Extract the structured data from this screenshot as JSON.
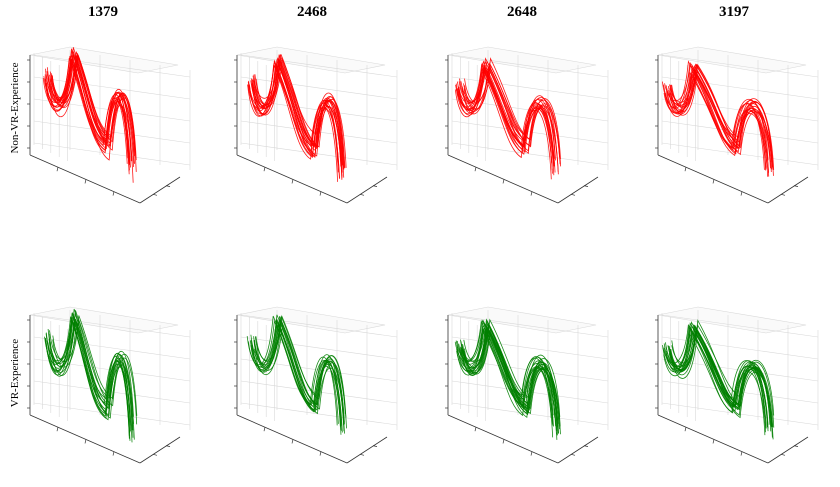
{
  "figure": {
    "columns": [
      "1379",
      "2468",
      "2648",
      "3197"
    ],
    "rows": [
      {
        "label": "Non-VR-Experience",
        "color": "#ff0000"
      },
      {
        "label": "VR-Experience",
        "color": "#008000"
      }
    ]
  },
  "chart_data": [
    {
      "type": "line",
      "subtitle": "1379",
      "group": "Non-VR-Experience",
      "color": "#ff0000",
      "shape": "multi-loop 3D trajectories",
      "grid": true
    },
    {
      "type": "line",
      "subtitle": "2468",
      "group": "Non-VR-Experience",
      "color": "#ff0000",
      "shape": "multi-loop 3D trajectories",
      "grid": true
    },
    {
      "type": "line",
      "subtitle": "2648",
      "group": "Non-VR-Experience",
      "color": "#ff0000",
      "shape": "multi-loop 3D trajectories",
      "grid": true
    },
    {
      "type": "line",
      "subtitle": "3197",
      "group": "Non-VR-Experience",
      "color": "#ff0000",
      "shape": "multi-loop 3D trajectories",
      "grid": true
    },
    {
      "type": "line",
      "subtitle": "1379",
      "group": "VR-Experience",
      "color": "#008000",
      "shape": "multi-loop 3D trajectories",
      "grid": true
    },
    {
      "type": "line",
      "subtitle": "2468",
      "group": "VR-Experience",
      "color": "#008000",
      "shape": "multi-loop 3D trajectories",
      "grid": true
    },
    {
      "type": "line",
      "subtitle": "2648",
      "group": "VR-Experience",
      "color": "#008000",
      "shape": "multi-loop 3D trajectories",
      "grid": true
    },
    {
      "type": "line",
      "subtitle": "3197",
      "group": "VR-Experience",
      "color": "#008000",
      "shape": "multi-loop 3D trajectories",
      "grid": true
    }
  ]
}
